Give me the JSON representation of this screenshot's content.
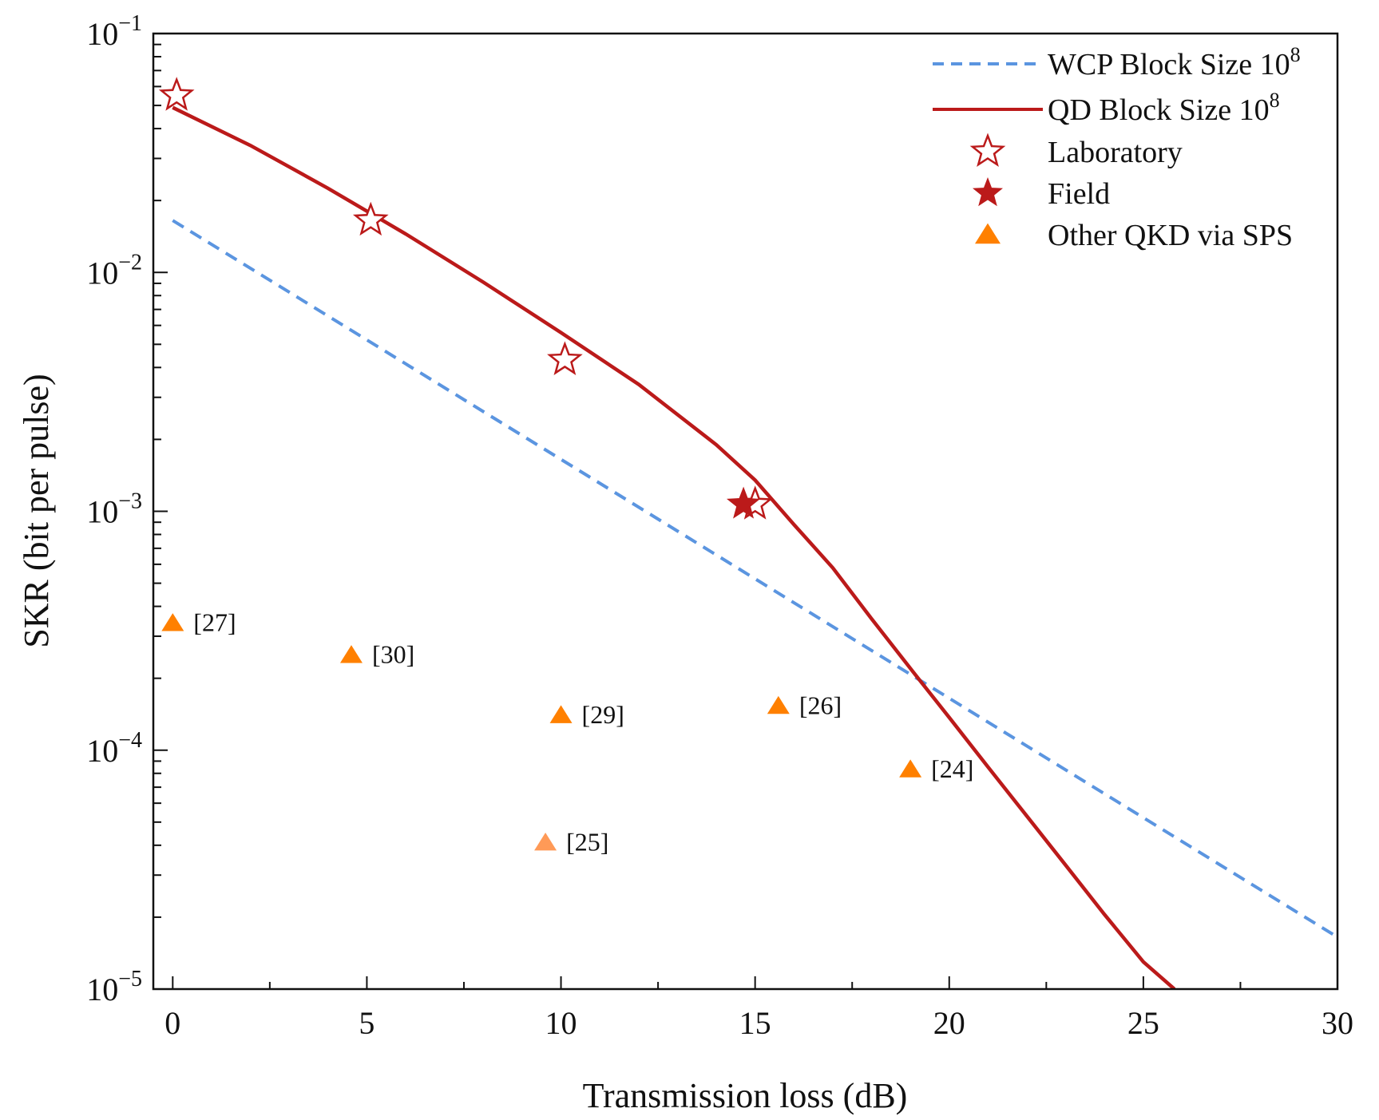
{
  "chart_data": {
    "type": "line",
    "xlabel": "Transmission loss (dB)",
    "ylabel": "SKR (bit per pulse)",
    "xlim": [
      -0.5,
      30
    ],
    "ylim": [
      1e-05,
      0.1
    ],
    "yscale": "log",
    "x_ticks": [
      {
        "value": 0,
        "label": "0"
      },
      {
        "value": 5,
        "label": "5"
      },
      {
        "value": 10,
        "label": "10"
      },
      {
        "value": 15,
        "label": "15"
      },
      {
        "value": 20,
        "label": "20"
      },
      {
        "value": 25,
        "label": "25"
      },
      {
        "value": 30,
        "label": "30"
      }
    ],
    "y_ticks": [
      {
        "value": 0.1,
        "base": "10",
        "exp": "−1"
      },
      {
        "value": 0.01,
        "base": "10",
        "exp": "−2"
      },
      {
        "value": 0.001,
        "base": "10",
        "exp": "−3"
      },
      {
        "value": 0.0001,
        "base": "10",
        "exp": "−4"
      },
      {
        "value": 1e-05,
        "base": "10",
        "exp": "−5"
      }
    ],
    "grid": false,
    "legend_position": "top-right",
    "series": [
      {
        "name": "WCP Block Size 10",
        "name_sup": "8",
        "kind": "line",
        "style": "dashed",
        "color": "#5b95e0",
        "points": [
          [
            0,
            0.0165
          ],
          [
            30,
            1.65e-05
          ]
        ]
      },
      {
        "name": "QD Block Size 10",
        "name_sup": "8",
        "kind": "line",
        "style": "solid",
        "color": "#bb1a1a",
        "points": [
          [
            0,
            0.049
          ],
          [
            2,
            0.034
          ],
          [
            4,
            0.0225
          ],
          [
            6,
            0.0145
          ],
          [
            8,
            0.0091
          ],
          [
            10,
            0.0056
          ],
          [
            12,
            0.0034
          ],
          [
            14,
            0.0019
          ],
          [
            15,
            0.00135
          ],
          [
            16,
            0.00088
          ],
          [
            17,
            0.00058
          ],
          [
            18,
            0.000355
          ],
          [
            19,
            0.00022
          ],
          [
            20,
            0.000137
          ],
          [
            21,
            8.5e-05
          ],
          [
            22,
            5.3e-05
          ],
          [
            23,
            3.3e-05
          ],
          [
            24,
            2.05e-05
          ],
          [
            25,
            1.3e-05
          ],
          [
            25.8,
            1e-05
          ]
        ]
      },
      {
        "name": "Laboratory",
        "kind": "marker",
        "marker": "star-open",
        "color": "#bb1a1a",
        "points": [
          [
            0.1,
            0.055
          ],
          [
            5.1,
            0.0165
          ],
          [
            10.1,
            0.0043
          ],
          [
            15.0,
            0.00107
          ]
        ]
      },
      {
        "name": "Field",
        "kind": "marker",
        "marker": "star-filled",
        "color": "#bb1a1a",
        "points": [
          [
            14.7,
            0.00107
          ]
        ]
      },
      {
        "name": "Other QKD via SPS",
        "kind": "marker",
        "marker": "triangle",
        "color": "#ff8000",
        "points": [
          {
            "x": 0.0,
            "y": 0.00034,
            "label": "[27]"
          },
          {
            "x": 4.6,
            "y": 0.00025,
            "label": "[30]"
          },
          {
            "x": 10.0,
            "y": 0.00014,
            "label": "[29]"
          },
          {
            "x": 15.6,
            "y": 0.000153,
            "label": "[26]"
          },
          {
            "x": 19.0,
            "y": 8.3e-05,
            "label": "[24]"
          },
          {
            "x": 9.6,
            "y": 4.1e-05,
            "label": "[25]",
            "color": "#ff9a57"
          }
        ]
      }
    ]
  }
}
